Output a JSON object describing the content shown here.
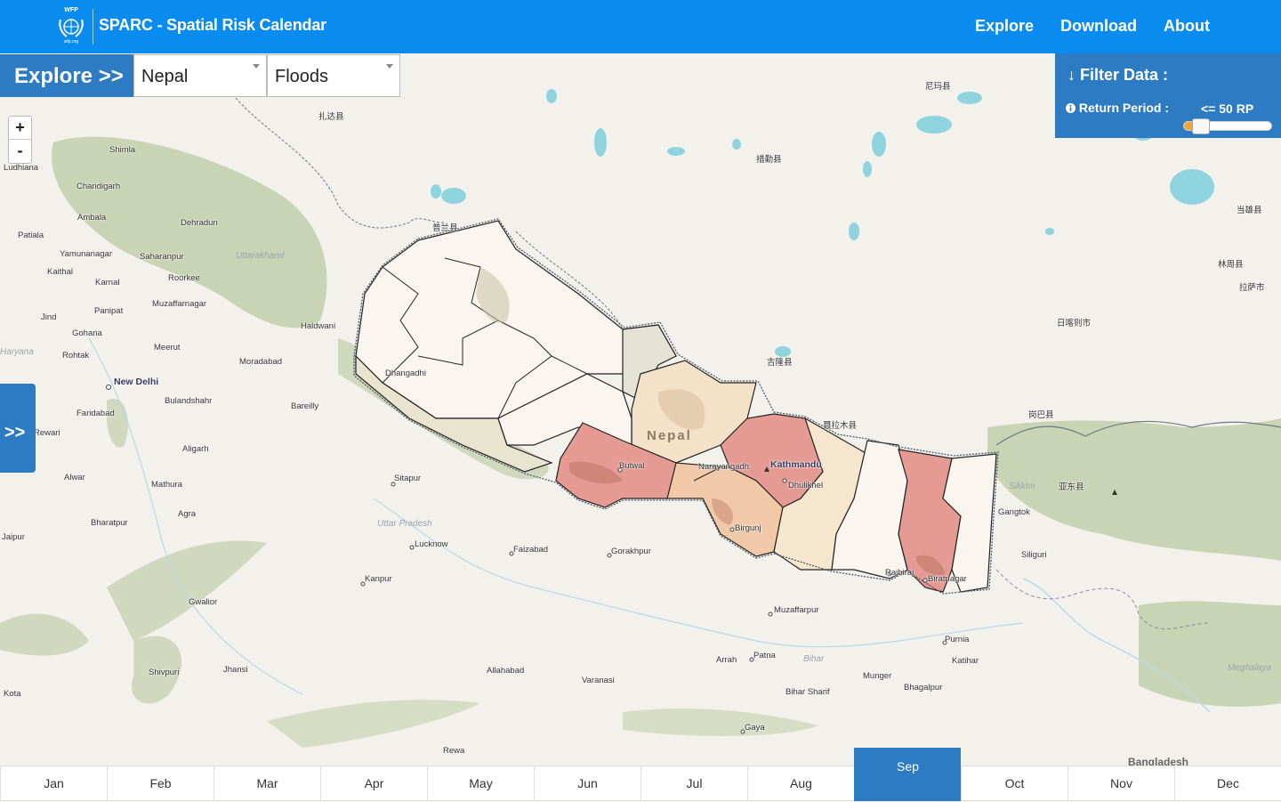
{
  "header": {
    "logo_top": "WFP",
    "logo_bottom": "wfp.org",
    "title": "SPARC - Spatial Risk Calendar",
    "nav": [
      "Explore",
      "Download",
      "About"
    ]
  },
  "controls": {
    "explore_label": "Explore >>",
    "country": "Nepal",
    "hazard": "Floods",
    "zoom_in": "+",
    "zoom_out": "-",
    "side_toggle": ">>"
  },
  "filter": {
    "title": "↓ Filter Data :",
    "label": "Return Period :",
    "value": "<= 50 RP",
    "slider_level": 0.15
  },
  "map": {
    "country_label": "Nepal",
    "places": [
      "Shimla",
      "Ludhiana",
      "Chandigarh",
      "Ambala",
      "Dehradun",
      "Patiala",
      "Yamunanagar",
      "Saharanpur",
      "Kaithal",
      "Karnal",
      "Roorkee",
      "Muzaffarnagar",
      "Jind",
      "Panipat",
      "Haldwani",
      "Gohana",
      "Meerut",
      "Rohtak",
      "Moradabad",
      "New Delhi",
      "Bulandshahr",
      "Bareilly",
      "Faridabad",
      "Rewari",
      "Aligarh",
      "Alwar",
      "Mathura",
      "Sitapur",
      "Agra",
      "Bharatpur",
      "Lucknow",
      "Faizabad",
      "Gorakhpur",
      "Kanpur",
      "Gwalior",
      "Muzaffarpur",
      "Jhansi",
      "Shivpuri",
      "Allahabad",
      "Varanasi",
      "Arrah",
      "Patna",
      "Bihar Sharif",
      "Munger",
      "Bhagalpur",
      "Purnia",
      "Katihar",
      "Gaya",
      "Rewa",
      "Kota",
      "Jaipur",
      "Dhangadhi",
      "Butwal",
      "Narayangadh",
      "Kathmandu",
      "Dhulikhel",
      "Birgunj",
      "Rajbiraj",
      "Biratnagar",
      "Gangtok",
      "Siliguri",
      "尼玛县",
      "扎达县",
      "措勤县",
      "普兰县",
      "吉隆县",
      "聂拉木县",
      "日喀则市",
      "当雄县",
      "林周县",
      "拉萨市",
      "岗巴县",
      "亚东县"
    ],
    "regions": [
      "Uttarakhand",
      "Haryana",
      "Uttar Pradesh",
      "Bihar",
      "Sikkim",
      "Meghalaya",
      "Bangladesh"
    ]
  },
  "months": [
    "Jan",
    "Feb",
    "Mar",
    "Apr",
    "May",
    "Jun",
    "Jul",
    "Aug",
    "Sep",
    "Oct",
    "Nov",
    "Dec"
  ],
  "active_month": "Sep",
  "colors": {
    "header": "#0a8bf0",
    "panel": "#2d7bc2",
    "slider_fill": "#f3a531",
    "risk_high": "#e59a94",
    "risk_mid": "#f2c9a8",
    "risk_low": "#f6e6cd",
    "risk_none": "#faf6ef",
    "water": "#8fd3de",
    "vegetation": "#b9c9a0"
  }
}
